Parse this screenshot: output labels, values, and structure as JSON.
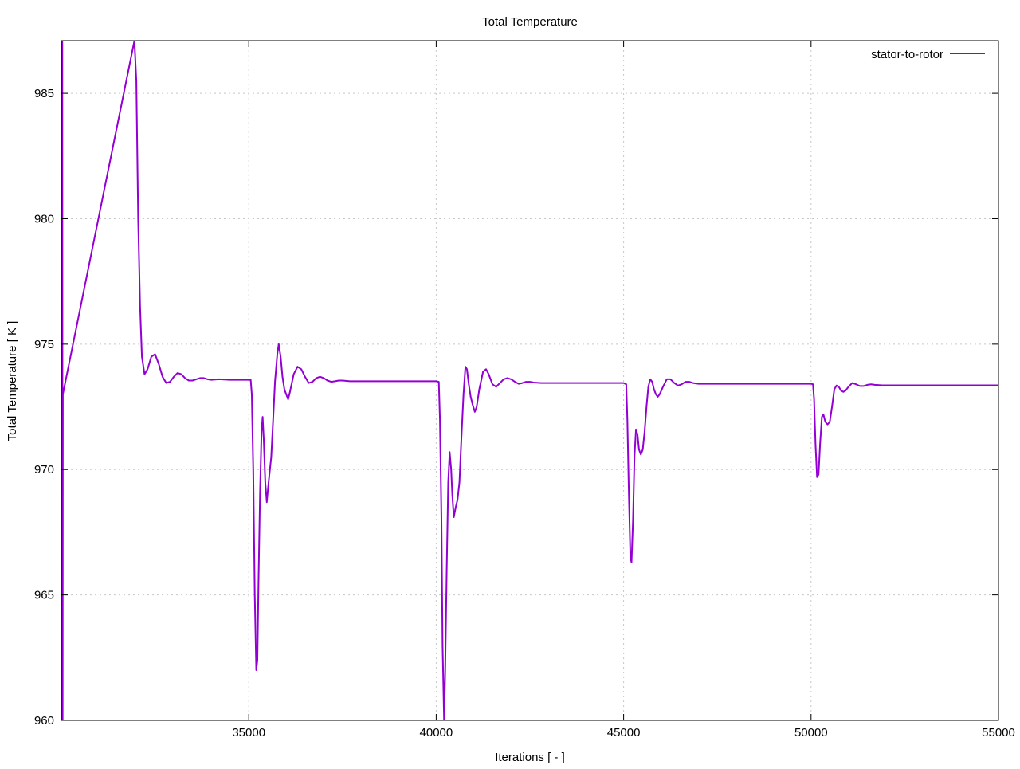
{
  "colors": {
    "series": "#9400d3",
    "grid": "#c8c8c8",
    "axis": "#000000",
    "background": "#ffffff"
  },
  "chart_data": {
    "type": "line",
    "title": "Total Temperature",
    "xlabel": "Iterations [ - ]",
    "ylabel": "Total Temperature [ K ]",
    "xlim": [
      30000,
      55000
    ],
    "ylim": [
      960,
      987.1
    ],
    "xticks": [
      35000,
      40000,
      45000,
      50000,
      55000
    ],
    "yticks": [
      960,
      965,
      970,
      975,
      980,
      985
    ],
    "grid": true,
    "legend_position": "top-right",
    "series": [
      {
        "name": "stator-to-rotor",
        "color": "#9400d3",
        "points": [
          [
            30000,
            973.3
          ],
          [
            30010,
            960
          ],
          [
            30015,
            987.1
          ],
          [
            30025,
            987.1
          ],
          [
            30035,
            960
          ],
          [
            30040,
            973.0
          ],
          [
            31950,
            987.1
          ],
          [
            32000,
            985.5
          ],
          [
            32050,
            980.0
          ],
          [
            32100,
            976.5
          ],
          [
            32150,
            974.5
          ],
          [
            32220,
            973.8
          ],
          [
            32300,
            974.0
          ],
          [
            32400,
            974.5
          ],
          [
            32500,
            974.6
          ],
          [
            32600,
            974.2
          ],
          [
            32700,
            973.7
          ],
          [
            32800,
            973.45
          ],
          [
            32900,
            973.5
          ],
          [
            33000,
            973.7
          ],
          [
            33100,
            973.85
          ],
          [
            33200,
            973.8
          ],
          [
            33300,
            973.65
          ],
          [
            33400,
            973.55
          ],
          [
            33500,
            973.55
          ],
          [
            33600,
            973.6
          ],
          [
            33700,
            973.65
          ],
          [
            33800,
            973.65
          ],
          [
            33900,
            973.6
          ],
          [
            34000,
            973.58
          ],
          [
            34200,
            973.6
          ],
          [
            34500,
            973.58
          ],
          [
            35000,
            973.58
          ],
          [
            35050,
            973.58
          ],
          [
            35080,
            973.0
          ],
          [
            35120,
            970.0
          ],
          [
            35160,
            965.0
          ],
          [
            35200,
            962.0
          ],
          [
            35230,
            962.4
          ],
          [
            35260,
            965.5
          ],
          [
            35300,
            969.0
          ],
          [
            35340,
            971.5
          ],
          [
            35370,
            972.1
          ],
          [
            35400,
            971.2
          ],
          [
            35440,
            969.5
          ],
          [
            35480,
            968.7
          ],
          [
            35530,
            969.5
          ],
          [
            35600,
            970.5
          ],
          [
            35650,
            972.0
          ],
          [
            35700,
            973.5
          ],
          [
            35760,
            974.6
          ],
          [
            35800,
            975.0
          ],
          [
            35850,
            974.5
          ],
          [
            35900,
            973.7
          ],
          [
            35950,
            973.2
          ],
          [
            36000,
            973.0
          ],
          [
            36050,
            972.8
          ],
          [
            36100,
            973.1
          ],
          [
            36200,
            973.8
          ],
          [
            36300,
            974.1
          ],
          [
            36400,
            974.0
          ],
          [
            36500,
            973.7
          ],
          [
            36600,
            973.45
          ],
          [
            36700,
            973.5
          ],
          [
            36800,
            973.65
          ],
          [
            36900,
            973.7
          ],
          [
            37000,
            973.65
          ],
          [
            37100,
            973.55
          ],
          [
            37200,
            973.5
          ],
          [
            37300,
            973.52
          ],
          [
            37400,
            973.55
          ],
          [
            37500,
            973.55
          ],
          [
            37700,
            973.52
          ],
          [
            38000,
            973.52
          ],
          [
            40000,
            973.52
          ],
          [
            40070,
            973.5
          ],
          [
            40100,
            972.0
          ],
          [
            40140,
            968.0
          ],
          [
            40170,
            963.0
          ],
          [
            40210,
            960.0
          ],
          [
            40240,
            962.0
          ],
          [
            40280,
            966.0
          ],
          [
            40320,
            969.5
          ],
          [
            40360,
            970.7
          ],
          [
            40400,
            970.0
          ],
          [
            40430,
            969.0
          ],
          [
            40470,
            968.1
          ],
          [
            40520,
            968.5
          ],
          [
            40570,
            968.8
          ],
          [
            40620,
            969.5
          ],
          [
            40680,
            971.5
          ],
          [
            40730,
            973.0
          ],
          [
            40780,
            974.1
          ],
          [
            40820,
            974.0
          ],
          [
            40870,
            973.4
          ],
          [
            40920,
            972.9
          ],
          [
            40970,
            972.6
          ],
          [
            41030,
            972.3
          ],
          [
            41080,
            972.5
          ],
          [
            41150,
            973.2
          ],
          [
            41250,
            973.9
          ],
          [
            41330,
            974.0
          ],
          [
            41400,
            973.8
          ],
          [
            41500,
            973.4
          ],
          [
            41600,
            973.3
          ],
          [
            41700,
            973.45
          ],
          [
            41800,
            973.6
          ],
          [
            41900,
            973.65
          ],
          [
            42000,
            973.6
          ],
          [
            42100,
            973.5
          ],
          [
            42200,
            973.42
          ],
          [
            42300,
            973.45
          ],
          [
            42400,
            973.5
          ],
          [
            42500,
            973.5
          ],
          [
            42600,
            973.47
          ],
          [
            42800,
            973.45
          ],
          [
            43000,
            973.45
          ],
          [
            45000,
            973.45
          ],
          [
            45070,
            973.4
          ],
          [
            45100,
            972.0
          ],
          [
            45140,
            969.0
          ],
          [
            45180,
            966.5
          ],
          [
            45210,
            966.3
          ],
          [
            45250,
            968.0
          ],
          [
            45290,
            970.5
          ],
          [
            45330,
            971.6
          ],
          [
            45370,
            971.4
          ],
          [
            45410,
            970.8
          ],
          [
            45460,
            970.6
          ],
          [
            45510,
            970.8
          ],
          [
            45560,
            971.5
          ],
          [
            45610,
            972.5
          ],
          [
            45660,
            973.3
          ],
          [
            45710,
            973.6
          ],
          [
            45760,
            973.5
          ],
          [
            45810,
            973.2
          ],
          [
            45860,
            973.0
          ],
          [
            45910,
            972.9
          ],
          [
            45960,
            973.0
          ],
          [
            46050,
            973.3
          ],
          [
            46150,
            973.6
          ],
          [
            46250,
            973.6
          ],
          [
            46350,
            973.45
          ],
          [
            46450,
            973.35
          ],
          [
            46550,
            973.4
          ],
          [
            46650,
            973.5
          ],
          [
            46750,
            973.5
          ],
          [
            46850,
            973.45
          ],
          [
            47000,
            973.42
          ],
          [
            47200,
            973.42
          ],
          [
            47500,
            973.42
          ],
          [
            50000,
            973.42
          ],
          [
            50050,
            973.4
          ],
          [
            50080,
            972.8
          ],
          [
            50120,
            971.0
          ],
          [
            50160,
            969.7
          ],
          [
            50200,
            969.8
          ],
          [
            50240,
            971.0
          ],
          [
            50290,
            972.1
          ],
          [
            50330,
            972.2
          ],
          [
            50380,
            971.9
          ],
          [
            50440,
            971.8
          ],
          [
            50500,
            971.9
          ],
          [
            50560,
            972.5
          ],
          [
            50620,
            973.2
          ],
          [
            50680,
            973.35
          ],
          [
            50740,
            973.3
          ],
          [
            50800,
            973.15
          ],
          [
            50860,
            973.1
          ],
          [
            50920,
            973.15
          ],
          [
            51000,
            973.3
          ],
          [
            51100,
            973.45
          ],
          [
            51200,
            973.4
          ],
          [
            51300,
            973.33
          ],
          [
            51400,
            973.33
          ],
          [
            51500,
            973.38
          ],
          [
            51600,
            973.4
          ],
          [
            51700,
            973.38
          ],
          [
            51900,
            973.36
          ],
          [
            52200,
            973.36
          ],
          [
            53000,
            973.36
          ],
          [
            55000,
            973.36
          ]
        ]
      }
    ]
  }
}
